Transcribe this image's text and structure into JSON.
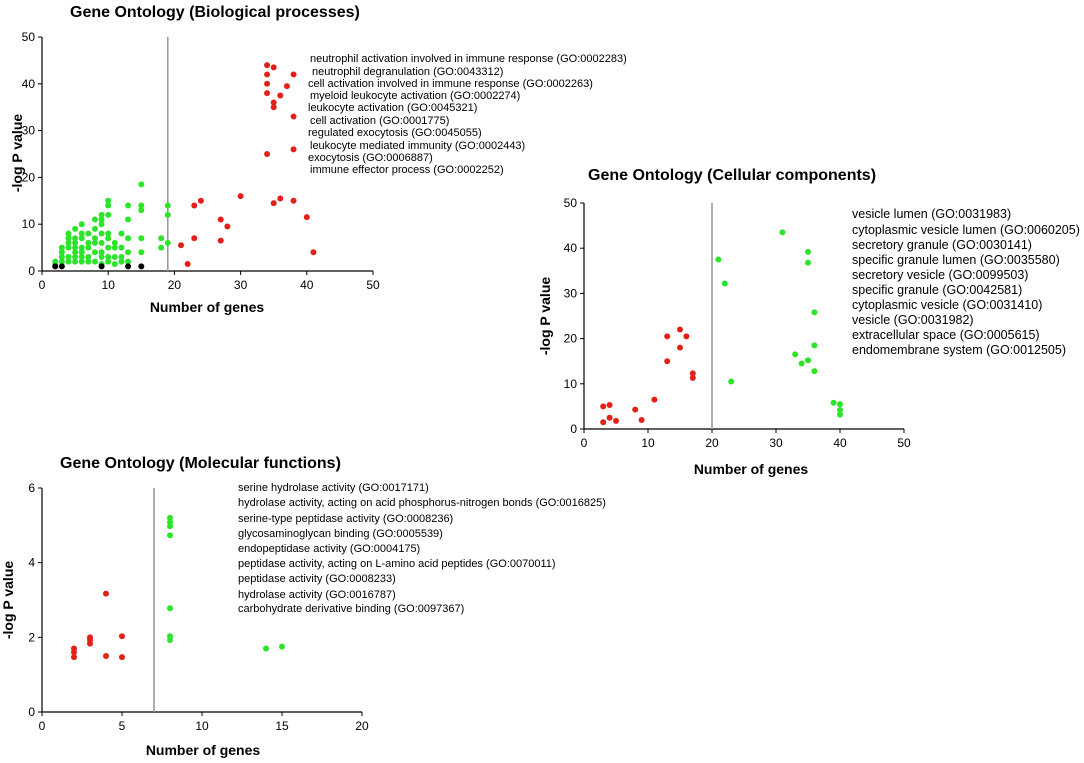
{
  "chart_data": [
    {
      "type": "scatter",
      "title": "Gene Ontology (Biological processes)",
      "xlabel": "Number of genes",
      "ylabel": "-log P value",
      "xlim": [
        0,
        50
      ],
      "ylim": [
        0,
        50
      ],
      "xticks": [
        "0",
        "10",
        "20",
        "30",
        "40",
        "50"
      ],
      "yticks": [
        "0",
        "10",
        "20",
        "30",
        "40",
        "50"
      ],
      "threshold_x": 19,
      "legend": [
        "neutrophil activation involved in immune response (GO:0002283)",
        "neutrophil degranulation (GO:0043312)",
        "cell activation involved in immune response (GO:0002263)",
        "myeloid leukocyte activation (GO:0002274)",
        "leukocyte activation (GO:0045321)",
        "cell activation (GO:0001775)",
        "regulated exocytosis (GO:0045055)",
        "leukocyte mediated immunity (GO:0002443)",
        "exocytosis (GO:0006887)",
        "immune effector process (GO:0002252)"
      ],
      "series": [
        {
          "name": "red",
          "color": "#e32119",
          "points": [
            [
              34,
              44
            ],
            [
              34,
              42
            ],
            [
              35,
              43.5
            ],
            [
              38,
              42
            ],
            [
              34,
              40
            ],
            [
              37,
              39.5
            ],
            [
              34,
              38
            ],
            [
              36,
              37.5
            ],
            [
              35,
              36
            ],
            [
              35,
              35
            ],
            [
              38,
              33
            ],
            [
              34,
              25
            ],
            [
              38,
              26
            ],
            [
              21,
              5.5
            ],
            [
              22,
              1.5
            ],
            [
              23,
              7
            ],
            [
              23,
              14
            ],
            [
              24,
              15
            ],
            [
              27,
              11
            ],
            [
              27,
              6.5
            ],
            [
              28,
              9.5
            ],
            [
              30,
              16
            ],
            [
              35,
              14.5
            ],
            [
              36,
              15.5
            ],
            [
              38,
              15
            ],
            [
              40,
              11.5
            ],
            [
              41,
              4
            ]
          ]
        },
        {
          "name": "green",
          "color": "#2ae52a",
          "points": [
            [
              2,
              2
            ],
            [
              2,
              1.5
            ],
            [
              3,
              2
            ],
            [
              3,
              3
            ],
            [
              3,
              4
            ],
            [
              3,
              5
            ],
            [
              4,
              2
            ],
            [
              4,
              3
            ],
            [
              4,
              5
            ],
            [
              4,
              6
            ],
            [
              4,
              7
            ],
            [
              4,
              8
            ],
            [
              5,
              2
            ],
            [
              5,
              3
            ],
            [
              5,
              4
            ],
            [
              5,
              5
            ],
            [
              5,
              6
            ],
            [
              5,
              7
            ],
            [
              5,
              9
            ],
            [
              6,
              2
            ],
            [
              6,
              3
            ],
            [
              6,
              4
            ],
            [
              6,
              5
            ],
            [
              6,
              7
            ],
            [
              6,
              8
            ],
            [
              6,
              10
            ],
            [
              7,
              2
            ],
            [
              7,
              3
            ],
            [
              7,
              5
            ],
            [
              7,
              6
            ],
            [
              7,
              8
            ],
            [
              8,
              2
            ],
            [
              8,
              4
            ],
            [
              8,
              6
            ],
            [
              8,
              7
            ],
            [
              8,
              9
            ],
            [
              8,
              11
            ],
            [
              9,
              1.5
            ],
            [
              9,
              3
            ],
            [
              9,
              4
            ],
            [
              9,
              6
            ],
            [
              9,
              8
            ],
            [
              9,
              10
            ],
            [
              9,
              11
            ],
            [
              9,
              12
            ],
            [
              10,
              2
            ],
            [
              10,
              3
            ],
            [
              10,
              5
            ],
            [
              10,
              7
            ],
            [
              10,
              8
            ],
            [
              10,
              12
            ],
            [
              10,
              14
            ],
            [
              10,
              15
            ],
            [
              11,
              1.5
            ],
            [
              11,
              3
            ],
            [
              11,
              5
            ],
            [
              11,
              6
            ],
            [
              12,
              2
            ],
            [
              12,
              3
            ],
            [
              12,
              5
            ],
            [
              12,
              8
            ],
            [
              13,
              2
            ],
            [
              13,
              4
            ],
            [
              13,
              7
            ],
            [
              13,
              11
            ],
            [
              13,
              14
            ],
            [
              15,
              4
            ],
            [
              15,
              7
            ],
            [
              15,
              13
            ],
            [
              15,
              14
            ],
            [
              15,
              18.5
            ],
            [
              18,
              5
            ],
            [
              18,
              7
            ],
            [
              19,
              14
            ],
            [
              19,
              12
            ],
            [
              19,
              6
            ]
          ]
        },
        {
          "name": "black",
          "color": "#000000",
          "points": [
            [
              2,
              1
            ],
            [
              3,
              1
            ],
            [
              9,
              1
            ],
            [
              13,
              1
            ],
            [
              15,
              1
            ]
          ]
        }
      ]
    },
    {
      "type": "scatter",
      "title": "Gene Ontology (Cellular components)",
      "xlabel": "Number of genes",
      "ylabel": "-log P value",
      "xlim": [
        0,
        50
      ],
      "ylim": [
        0,
        50
      ],
      "xticks": [
        "0",
        "10",
        "20",
        "30",
        "40",
        "50"
      ],
      "yticks": [
        "0",
        "10",
        "20",
        "30",
        "40",
        "50"
      ],
      "threshold_x": 20,
      "legend": [
        "vesicle lumen (GO:0031983)",
        "cytoplasmic vesicle lumen (GO:0060205)",
        "secretory granule (GO:0030141)",
        "specific granule lumen (GO:0035580)",
        "secretory vesicle (GO:0099503)",
        "specific granule (GO:0042581)",
        "cytoplasmic vesicle (GO:0031410)",
        "vesicle (GO:0031982)",
        "extracellular space (GO:0005615)",
        "endomembrane system (GO:0012505)"
      ],
      "series": [
        {
          "name": "red",
          "color": "#e32119",
          "points": [
            [
              3,
              5
            ],
            [
              3,
              1.5
            ],
            [
              4,
              5.3
            ],
            [
              4,
              2.5
            ],
            [
              5,
              1.8
            ],
            [
              8,
              4.3
            ],
            [
              9,
              2
            ],
            [
              11,
              6.5
            ],
            [
              13,
              20.5
            ],
            [
              13,
              15
            ],
            [
              15,
              22
            ],
            [
              15,
              18
            ],
            [
              16,
              20.5
            ],
            [
              17,
              12.3
            ],
            [
              17,
              11.3
            ]
          ]
        },
        {
          "name": "green",
          "color": "#2ae52a",
          "points": [
            [
              21,
              37.5
            ],
            [
              22,
              32.2
            ],
            [
              23,
              10.5
            ],
            [
              31,
              43.5
            ],
            [
              33,
              16.5
            ],
            [
              34,
              14.5
            ],
            [
              35,
              39.2
            ],
            [
              35,
              36.8
            ],
            [
              35,
              15.2
            ],
            [
              36,
              25.8
            ],
            [
              36,
              18.5
            ],
            [
              36,
              12.8
            ],
            [
              39,
              5.8
            ],
            [
              40,
              5.5
            ],
            [
              40,
              4.2
            ],
            [
              40,
              3.2
            ]
          ]
        }
      ]
    },
    {
      "type": "scatter",
      "title": "Gene Ontology (Molecular functions)",
      "xlabel": "Number of genes",
      "ylabel": "-log P value",
      "xlim": [
        0,
        20
      ],
      "ylim": [
        0,
        6
      ],
      "xticks": [
        "0",
        "5",
        "10",
        "15",
        "20"
      ],
      "yticks": [
        "0",
        "2",
        "4",
        "6"
      ],
      "threshold_x": 7,
      "legend": [
        "serine hydrolase activity (GO:0017171)",
        "hydrolase activity, acting on acid phosphorus-nitrogen bonds (GO:0016825)",
        "serine-type peptidase activity (GO:0008236)",
        "glycosaminoglycan binding (GO:0005539)",
        "endopeptidase activity (GO:0004175)",
        "peptidase activity, acting on L-amino acid peptides (GO:0070011)",
        "peptidase activity (GO:0008233)",
        "hydrolase activity (GO:0016787)",
        "carbohydrate derivative binding (GO:0097367)"
      ],
      "series": [
        {
          "name": "red",
          "color": "#e32119",
          "points": [
            [
              2,
              1.7
            ],
            [
              2,
              1.6
            ],
            [
              2,
              1.47
            ],
            [
              3,
              2
            ],
            [
              3,
              1.93
            ],
            [
              3,
              1.83
            ],
            [
              4,
              3.17
            ],
            [
              4,
              1.5
            ],
            [
              5,
              2.03
            ],
            [
              5,
              1.47
            ]
          ]
        },
        {
          "name": "green",
          "color": "#2ae52a",
          "points": [
            [
              8,
              5.2
            ],
            [
              8,
              5.08
            ],
            [
              8,
              4.98
            ],
            [
              8,
              4.73
            ],
            [
              8,
              2.78
            ],
            [
              8,
              2.03
            ],
            [
              8,
              1.93
            ],
            [
              14,
              1.7
            ],
            [
              15,
              1.75
            ]
          ]
        }
      ]
    }
  ]
}
